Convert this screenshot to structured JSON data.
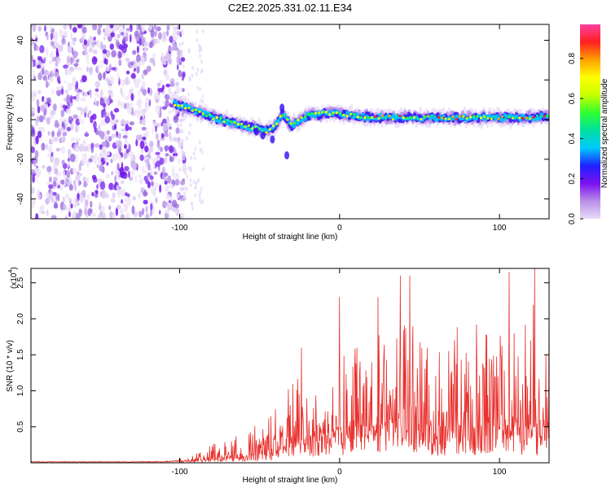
{
  "title": "C2E2.2025.331.02.11.E34",
  "chart_data": [
    {
      "type": "heatmap",
      "title": "C2E2.2025.331.02.11.E34",
      "xlabel": "Height of straight line (km)",
      "ylabel": "Frequency (Hz)",
      "xlim": [
        -193,
        131
      ],
      "ylim": [
        -50,
        48
      ],
      "x_ticks": [
        -100,
        0,
        100
      ],
      "y_ticks": [
        -40,
        -20,
        0,
        20,
        40
      ],
      "x_tick_labels": [
        "-100",
        "0",
        "100"
      ],
      "y_tick_labels": [
        "-40",
        "-20",
        "0",
        "20",
        "40"
      ],
      "colorbar": {
        "label": "Normalized spectral amplitude",
        "range": [
          0,
          0.97
        ],
        "ticks": [
          0.0,
          0.2,
          0.4,
          0.6,
          0.8
        ],
        "tick_labels": [
          "0.0",
          "0.2",
          "0.4",
          "0.6",
          "0.8"
        ],
        "colormap": [
          "#e8dcf7",
          "#b98ee8",
          "#7a10f0",
          "#2020ff",
          "#00c8ff",
          "#00e0a0",
          "#30ff30",
          "#c8ff00",
          "#ffff00",
          "#ffa000",
          "#ff2020",
          "#ff40a0"
        ]
      },
      "features": {
        "noise_region_x": [
          -193,
          -100
        ],
        "signal_track": [
          {
            "x": -103,
            "freq": 8
          },
          {
            "x": -95,
            "freq": 6
          },
          {
            "x": -85,
            "freq": 3
          },
          {
            "x": -75,
            "freq": 0
          },
          {
            "x": -65,
            "freq": -2
          },
          {
            "x": -55,
            "freq": -4
          },
          {
            "x": -45,
            "freq": -6
          },
          {
            "x": -40,
            "freq": -3
          },
          {
            "x": -36,
            "freq": 3
          },
          {
            "x": -30,
            "freq": -3
          },
          {
            "x": -20,
            "freq": 2
          },
          {
            "x": -10,
            "freq": 3
          },
          {
            "x": 0,
            "freq": 3
          },
          {
            "x": 10,
            "freq": 2
          },
          {
            "x": 20,
            "freq": 1
          },
          {
            "x": 40,
            "freq": 1
          },
          {
            "x": 60,
            "freq": 1
          },
          {
            "x": 80,
            "freq": 1
          },
          {
            "x": 100,
            "freq": 1
          },
          {
            "x": 120,
            "freq": 1
          },
          {
            "x": 131,
            "freq": 2
          }
        ]
      }
    },
    {
      "type": "line",
      "xlabel": "Height of straight line (km)",
      "ylabel": "SNR (10 * v/v)",
      "multiplier_label": "(x10",
      "multiplier_exponent": "4",
      "xlim": [
        -193,
        131
      ],
      "ylim": [
        0,
        2.7
      ],
      "x_ticks": [
        -100,
        0,
        100
      ],
      "y_ticks": [
        0.5,
        1.0,
        1.5,
        2.0,
        2.5
      ],
      "x_tick_labels": [
        "-100",
        "0",
        "100"
      ],
      "y_tick_labels": [
        "0.5",
        "1.0",
        "1.5",
        "2.0",
        "2.5"
      ],
      "color": "#e8302c",
      "envelope": [
        {
          "x": -193,
          "base": 0.01,
          "peak": 0.02
        },
        {
          "x": -110,
          "base": 0.01,
          "peak": 0.02
        },
        {
          "x": -100,
          "base": 0.02,
          "peak": 0.05
        },
        {
          "x": -90,
          "base": 0.03,
          "peak": 0.12
        },
        {
          "x": -80,
          "base": 0.05,
          "peak": 0.25
        },
        {
          "x": -70,
          "base": 0.08,
          "peak": 0.45
        },
        {
          "x": -60,
          "base": 0.08,
          "peak": 0.42
        },
        {
          "x": -50,
          "base": 0.12,
          "peak": 0.55
        },
        {
          "x": -40,
          "base": 0.15,
          "peak": 0.75
        },
        {
          "x": -30,
          "base": 0.25,
          "peak": 1.2
        },
        {
          "x": -20,
          "base": 0.35,
          "peak": 1.25
        },
        {
          "x": -10,
          "base": 0.4,
          "peak": 1.3
        },
        {
          "x": 0,
          "base": 0.45,
          "peak": 1.5
        },
        {
          "x": 10,
          "base": 0.5,
          "peak": 1.6
        },
        {
          "x": 20,
          "base": 0.5,
          "peak": 1.7
        },
        {
          "x": 30,
          "base": 0.55,
          "peak": 1.9
        },
        {
          "x": 40,
          "base": 0.55,
          "peak": 2.0
        },
        {
          "x": 50,
          "base": 0.55,
          "peak": 1.9
        },
        {
          "x": 60,
          "base": 0.5,
          "peak": 1.8
        },
        {
          "x": 70,
          "base": 0.5,
          "peak": 1.9
        },
        {
          "x": 80,
          "base": 0.5,
          "peak": 2.0
        },
        {
          "x": 90,
          "base": 0.5,
          "peak": 1.9
        },
        {
          "x": 100,
          "base": 0.5,
          "peak": 2.0
        },
        {
          "x": 110,
          "base": 0.5,
          "peak": 2.1
        },
        {
          "x": 120,
          "base": 0.5,
          "peak": 2.2
        },
        {
          "x": 131,
          "base": 0.5,
          "peak": 2.2
        }
      ],
      "spikes": [
        {
          "x": -24,
          "y": 1.6
        },
        {
          "x": 0,
          "y": 2.3
        },
        {
          "x": 24,
          "y": 2.3
        },
        {
          "x": 38,
          "y": 2.6
        },
        {
          "x": 44,
          "y": 2.6
        },
        {
          "x": 106,
          "y": 2.65
        },
        {
          "x": 122,
          "y": 2.7
        }
      ]
    }
  ]
}
